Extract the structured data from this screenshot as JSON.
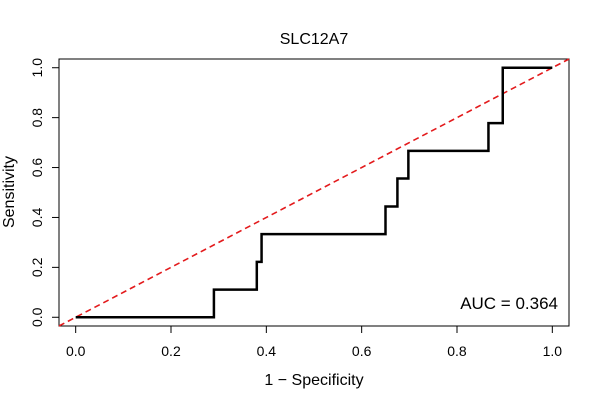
{
  "chart_data": {
    "type": "line",
    "title": "SLC12A7",
    "xlabel": "1 − Specificity",
    "ylabel": "Sensitivity",
    "xlim": [
      -0.035,
      1.035
    ],
    "ylim": [
      -0.035,
      1.035
    ],
    "x_ticks": [
      0.0,
      0.2,
      0.4,
      0.6,
      0.8,
      1.0
    ],
    "y_ticks": [
      0.0,
      0.2,
      0.4,
      0.6,
      0.8,
      1.0
    ],
    "x_tick_labels": [
      "0.0",
      "0.2",
      "0.4",
      "0.6",
      "0.8",
      "1.0"
    ],
    "y_tick_labels": [
      "0.0",
      "0.2",
      "0.4",
      "0.6",
      "0.8",
      "1.0"
    ],
    "grid": false,
    "legend": "none",
    "annotation": "AUC = 0.364",
    "annotation_position": "bottom-right",
    "series": [
      {
        "kind": "roc-curve",
        "color": "#000000",
        "style": "solid",
        "x": [
          0.0,
          0.29,
          0.29,
          0.38,
          0.38,
          0.39,
          0.39,
          0.65,
          0.65,
          0.675,
          0.675,
          0.698,
          0.698,
          0.866,
          0.866,
          0.896,
          0.896,
          1.0
        ],
        "y": [
          0.0,
          0.0,
          0.111,
          0.111,
          0.222,
          0.222,
          0.333,
          0.333,
          0.444,
          0.444,
          0.556,
          0.556,
          0.667,
          0.667,
          0.778,
          0.778,
          1.0,
          1.0
        ]
      },
      {
        "kind": "reference-diagonal",
        "color": "#e31a1c",
        "style": "dashed",
        "x": [
          -0.035,
          1.035
        ],
        "y": [
          -0.035,
          1.035
        ]
      }
    ]
  }
}
